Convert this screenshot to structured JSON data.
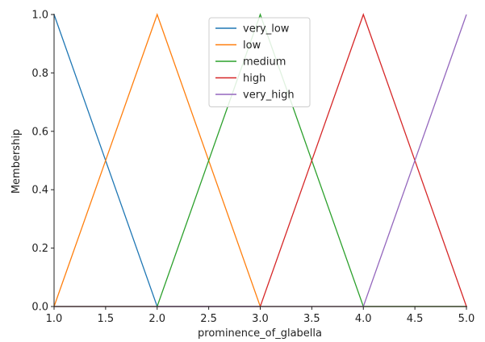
{
  "chart_data": {
    "type": "line",
    "xlabel": "prominence_of_glabella",
    "ylabel": "Membership",
    "xlim": [
      1.0,
      5.0
    ],
    "ylim": [
      0.0,
      1.0
    ],
    "x_ticks": [
      "1.0",
      "1.5",
      "2.0",
      "2.5",
      "3.0",
      "3.5",
      "4.0",
      "4.5",
      "5.0"
    ],
    "y_ticks": [
      "0.0",
      "0.2",
      "0.4",
      "0.6",
      "0.8",
      "1.0"
    ],
    "grid": false,
    "legend_position": "top-center",
    "series": [
      {
        "name": "very_low",
        "color": "#1f77b4",
        "x": [
          1.0,
          2.0,
          5.0
        ],
        "y": [
          1.0,
          0.0,
          0.0
        ]
      },
      {
        "name": "low",
        "color": "#ff7f0e",
        "x": [
          1.0,
          2.0,
          3.0,
          5.0
        ],
        "y": [
          0.0,
          1.0,
          0.0,
          0.0
        ]
      },
      {
        "name": "medium",
        "color": "#2ca02c",
        "x": [
          1.0,
          2.0,
          3.0,
          4.0,
          5.0
        ],
        "y": [
          0.0,
          0.0,
          1.0,
          0.0,
          0.0
        ]
      },
      {
        "name": "high",
        "color": "#d62728",
        "x": [
          1.0,
          3.0,
          4.0,
          5.0
        ],
        "y": [
          0.0,
          0.0,
          1.0,
          0.0
        ]
      },
      {
        "name": "very_high",
        "color": "#9467bd",
        "x": [
          1.0,
          4.0,
          5.0
        ],
        "y": [
          0.0,
          0.0,
          1.0
        ]
      }
    ]
  }
}
